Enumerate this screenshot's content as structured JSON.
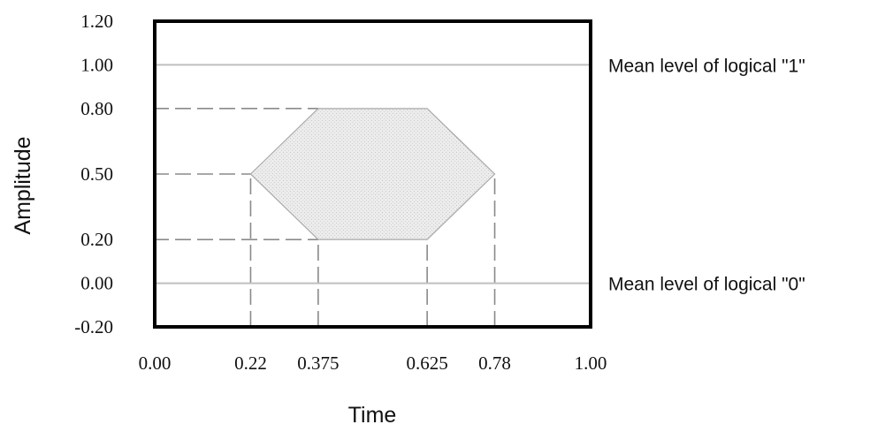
{
  "chart_data": {
    "type": "area",
    "title": "",
    "xlabel": "Time",
    "ylabel": "Amplitude",
    "xlim": [
      0.0,
      1.0
    ],
    "ylim": [
      -0.2,
      1.2
    ],
    "x_tick_values": [
      0.0,
      0.22,
      0.375,
      0.625,
      0.78,
      1.0
    ],
    "x_tick_labels": [
      "0.00",
      "0.22",
      "0.375",
      "0.625",
      "0.78",
      "1.00"
    ],
    "y_tick_values": [
      1.2,
      1.0,
      0.8,
      0.5,
      0.2,
      0.0,
      -0.2
    ],
    "y_tick_labels": [
      "1.20",
      "1.00",
      "0.80",
      "0.50",
      "0.20",
      "0.00",
      "-0.20"
    ],
    "grid": false,
    "mask_polygon": [
      {
        "x": 0.22,
        "y": 0.5
      },
      {
        "x": 0.375,
        "y": 0.8
      },
      {
        "x": 0.625,
        "y": 0.8
      },
      {
        "x": 0.78,
        "y": 0.5
      },
      {
        "x": 0.625,
        "y": 0.2
      },
      {
        "x": 0.375,
        "y": 0.2
      }
    ],
    "reference_lines": [
      {
        "y": 1.0,
        "label": "Mean level of logical \"1\""
      },
      {
        "y": 0.0,
        "label": "Mean level of logical \"0\""
      }
    ],
    "guide_lines": [
      {
        "type": "horizontal",
        "y": 0.8,
        "x_from": 0.0,
        "x_to": 0.375
      },
      {
        "type": "horizontal",
        "y": 0.5,
        "x_from": 0.0,
        "x_to": 0.22
      },
      {
        "type": "horizontal",
        "y": 0.2,
        "x_from": 0.0,
        "x_to": 0.375
      },
      {
        "type": "vertical",
        "x": 0.22,
        "y_from": -0.2,
        "y_to": 0.5
      },
      {
        "type": "vertical",
        "x": 0.375,
        "y_from": -0.2,
        "y_to": 0.2
      },
      {
        "type": "vertical",
        "x": 0.625,
        "y_from": -0.2,
        "y_to": 0.2
      },
      {
        "type": "vertical",
        "x": 0.78,
        "y_from": -0.2,
        "y_to": 0.5
      }
    ],
    "colors": {
      "frame": "#000000",
      "reference_line": "#bfbfbf",
      "guide_line": "#8a8a8a",
      "mask_fill": "#e6e6e6",
      "mask_stroke": "#a9a9a9",
      "text": "#111111"
    }
  }
}
